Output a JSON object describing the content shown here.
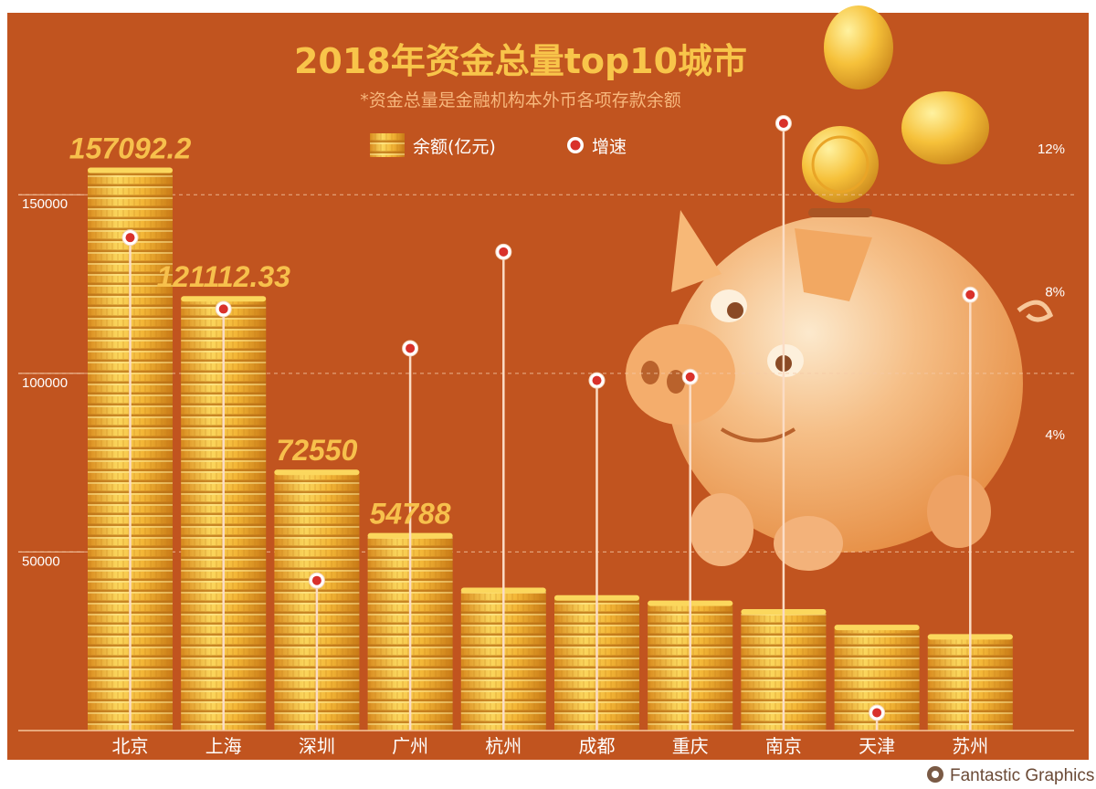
{
  "chart_data": {
    "type": "bar",
    "title": "2018年资金总量top10城市",
    "subtitle": "*资金总量是金融机构本外币各项存款余额",
    "categories": [
      "北京",
      "上海",
      "深圳",
      "广州",
      "杭州",
      "成都",
      "重庆",
      "南京",
      "天津",
      "苏州"
    ],
    "series": [
      {
        "name": "余额(亿元)",
        "type": "bar",
        "axis": "left",
        "values": [
          157092.2,
          121112.33,
          72550,
          54788,
          39500,
          37400,
          35900,
          33500,
          29100,
          26500
        ],
        "data_labels": [
          "157092.2",
          "121112.33",
          "72550",
          "54788",
          "",
          "",
          "",
          "",
          "",
          ""
        ]
      },
      {
        "name": "增速",
        "type": "dot-line",
        "axis": "right",
        "values": [
          9.8,
          7.8,
          0.2,
          6.7,
          9.4,
          5.8,
          5.9,
          13.0,
          -3.5,
          8.2
        ]
      }
    ],
    "y_left": {
      "range": [
        0,
        170000
      ],
      "ticks": [
        50000,
        100000,
        150000
      ]
    },
    "y_right": {
      "range": [
        -4,
        13
      ],
      "ticks": [
        4,
        8,
        12
      ],
      "tick_labels": [
        "4%",
        "8%",
        "12%"
      ]
    },
    "legend_position": "top-center",
    "grid": true
  },
  "colors": {
    "background": "#c1541f",
    "coin_fill": "#f1b334",
    "coin_highlight": "#fbd75d",
    "coin_shadow": "#d0851a",
    "title": "#f8c54a",
    "dot_ring": "#d9312b",
    "line": "#fbdcc4"
  },
  "decoration": {
    "illustration": "piggy-bank-with-coins",
    "credit": "Fantastic Graphics"
  }
}
